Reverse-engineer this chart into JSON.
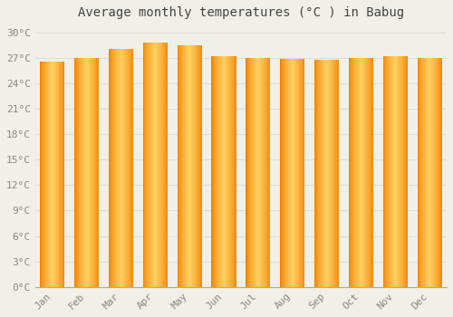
{
  "title": "Average monthly temperatures (°C ) in Babug",
  "months": [
    "Jan",
    "Feb",
    "Mar",
    "Apr",
    "May",
    "Jun",
    "Jul",
    "Aug",
    "Sep",
    "Oct",
    "Nov",
    "Dec"
  ],
  "values": [
    26.5,
    27.0,
    28.0,
    28.8,
    28.5,
    27.2,
    27.0,
    26.9,
    26.8,
    27.0,
    27.2,
    27.0
  ],
  "ylim": [
    0,
    31
  ],
  "yticks": [
    0,
    3,
    6,
    9,
    12,
    15,
    18,
    21,
    24,
    27,
    30
  ],
  "ytick_labels": [
    "0°C",
    "3°C",
    "6°C",
    "9°C",
    "12°C",
    "15°C",
    "18°C",
    "21°C",
    "24°C",
    "27°C",
    "30°C"
  ],
  "bar_color_center": "#FFD060",
  "bar_color_edge": "#F08000",
  "background_color": "#F0F0E8",
  "grid_color": "#DDDDDD",
  "title_fontsize": 10,
  "tick_fontsize": 8,
  "title_color": "#444444",
  "tick_color": "#888888",
  "bar_width": 0.72
}
